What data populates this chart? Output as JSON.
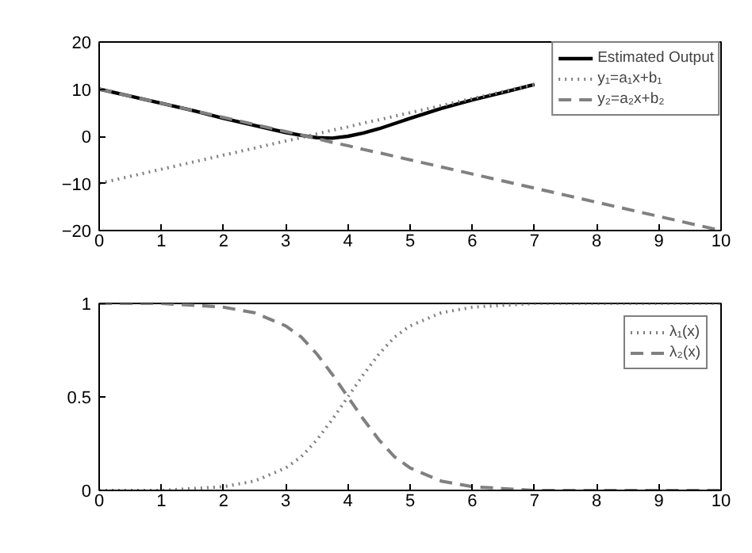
{
  "chart_data": [
    {
      "type": "line",
      "x": [
        0,
        0.5,
        1,
        1.5,
        2,
        2.5,
        3,
        3.25,
        3.5,
        3.75,
        4,
        4.25,
        4.5,
        5,
        5.5,
        6,
        6.5,
        7,
        7.5,
        8,
        9,
        10
      ],
      "series": [
        {
          "name": "Estimated Output",
          "color": "#000000",
          "line_style": "solid",
          "values": [
            10,
            8.5,
            7,
            5.5,
            3.8,
            2.3,
            0.8,
            0.2,
            -0.3,
            -0.4,
            0,
            0.7,
            1.6,
            3.8,
            5.9,
            7.7,
            9.3,
            11,
            null,
            null,
            null,
            null
          ]
        },
        {
          "name": "y₁=a₁x+b₁",
          "color": "#808080",
          "line_style": "dotted",
          "values": [
            -10,
            -8.5,
            -7,
            -5.5,
            -4,
            -2.5,
            -1,
            -0.3,
            0.5,
            1.3,
            2,
            2.8,
            3.5,
            5,
            6.5,
            8,
            9.5,
            11,
            null,
            null,
            null,
            null
          ]
        },
        {
          "name": "y₂=a₂x+b₂",
          "color": "#808080",
          "line_style": "dashed",
          "values": [
            10,
            8.5,
            7,
            5.5,
            4,
            2.5,
            1,
            0.3,
            -0.5,
            -1.3,
            -2,
            -2.8,
            -3.5,
            -5,
            -6.5,
            -8,
            -9.5,
            -11,
            -12.5,
            -14,
            -17,
            -20
          ]
        }
      ],
      "xlim": [
        0,
        10
      ],
      "ylim": [
        -20,
        20
      ],
      "xticks": [
        0,
        1,
        2,
        3,
        4,
        5,
        6,
        7,
        8,
        9,
        10
      ],
      "yticks": [
        -20,
        -10,
        0,
        10,
        20
      ],
      "legend": "top right",
      "grid": false
    },
    {
      "type": "line",
      "x": [
        0,
        1,
        1.5,
        2,
        2.5,
        3,
        3.25,
        3.5,
        3.75,
        4,
        4.25,
        4.5,
        4.75,
        5,
        5.5,
        6,
        6.5,
        7,
        8,
        9,
        10
      ],
      "series": [
        {
          "name": "λ₁(x)",
          "color": "#808080",
          "line_style": "dotted",
          "values": [
            0,
            0,
            0.01,
            0.02,
            0.05,
            0.12,
            0.18,
            0.27,
            0.38,
            0.5,
            0.62,
            0.73,
            0.82,
            0.88,
            0.95,
            0.98,
            0.99,
            1,
            1,
            1,
            1
          ]
        },
        {
          "name": "λ₂(x)",
          "color": "#808080",
          "line_style": "dashed",
          "values": [
            1,
            1,
            0.99,
            0.98,
            0.95,
            0.88,
            0.82,
            0.73,
            0.62,
            0.5,
            0.38,
            0.27,
            0.18,
            0.12,
            0.05,
            0.02,
            0.01,
            0,
            0,
            0,
            0
          ]
        }
      ],
      "xlim": [
        0,
        10
      ],
      "ylim": [
        0,
        1
      ],
      "xticks": [
        0,
        1,
        2,
        3,
        4,
        5,
        6,
        7,
        8,
        9,
        10
      ],
      "yticks": [
        0,
        0.5,
        1
      ],
      "legend": "top right",
      "grid": false
    }
  ]
}
